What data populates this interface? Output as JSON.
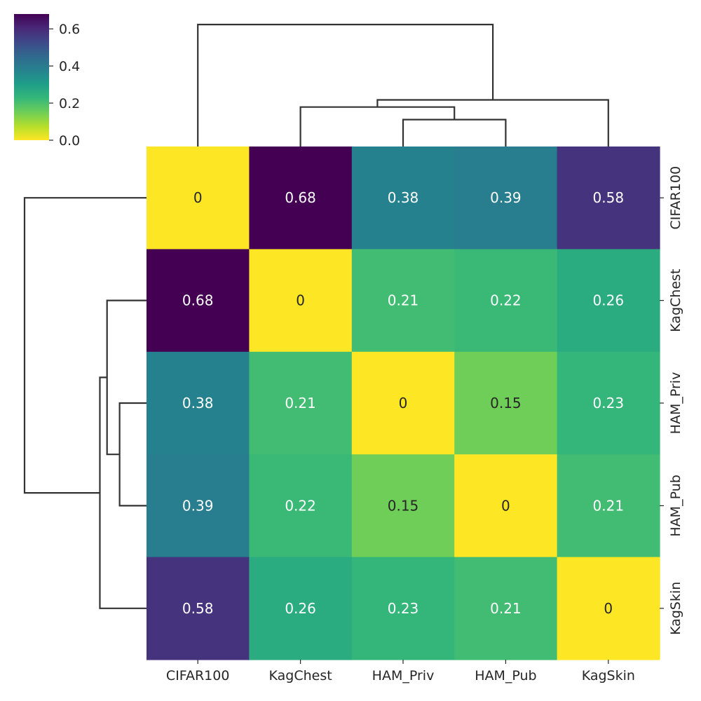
{
  "chart_data": {
    "type": "heatmap",
    "title": "",
    "colormap": "viridis_r",
    "labels": [
      "CIFAR100",
      "KagChest",
      "HAM_Priv",
      "HAM_Pub",
      "KagSkin"
    ],
    "values": [
      [
        0,
        0.68,
        0.38,
        0.39,
        0.58
      ],
      [
        0.68,
        0,
        0.21,
        0.22,
        0.26
      ],
      [
        0.38,
        0.21,
        0,
        0.15,
        0.23
      ],
      [
        0.39,
        0.22,
        0.15,
        0,
        0.21
      ],
      [
        0.58,
        0.26,
        0.23,
        0.21,
        0
      ]
    ],
    "annotations": [
      [
        "0",
        "0.68",
        "0.38",
        "0.39",
        "0.58"
      ],
      [
        "0.68",
        "0",
        "0.21",
        "0.22",
        "0.26"
      ],
      [
        "0.38",
        "0.21",
        "0",
        "0.15",
        "0.23"
      ],
      [
        "0.39",
        "0.22",
        "0.15",
        "0",
        "0.21"
      ],
      [
        "0.58",
        "0.26",
        "0.23",
        "0.21",
        "0"
      ]
    ],
    "colorbar": {
      "range": [
        0,
        0.68
      ],
      "ticks": [
        0.0,
        0.2,
        0.4,
        0.6
      ],
      "tick_labels": [
        "0.0",
        "0.2",
        "0.4",
        "0.6"
      ]
    },
    "dendrogram": {
      "linkage": [
        {
          "members": [
            "HAM_Priv",
            "HAM_Pub"
          ],
          "height": 0.15
        },
        {
          "members": [
            "KagChest",
            "HAM_Priv",
            "HAM_Pub"
          ],
          "height": 0.22
        },
        {
          "members": [
            "KagChest",
            "HAM_Priv",
            "HAM_Pub",
            "KagSkin"
          ],
          "height": 0.26
        },
        {
          "members": [
            "CIFAR100",
            "KagChest",
            "HAM_Priv",
            "HAM_Pub",
            "KagSkin"
          ],
          "height": 0.68
        }
      ]
    }
  },
  "colors": {
    "dendrogram_line": "#333333",
    "dark_text": "#262626",
    "light_text": "#ffffff"
  }
}
